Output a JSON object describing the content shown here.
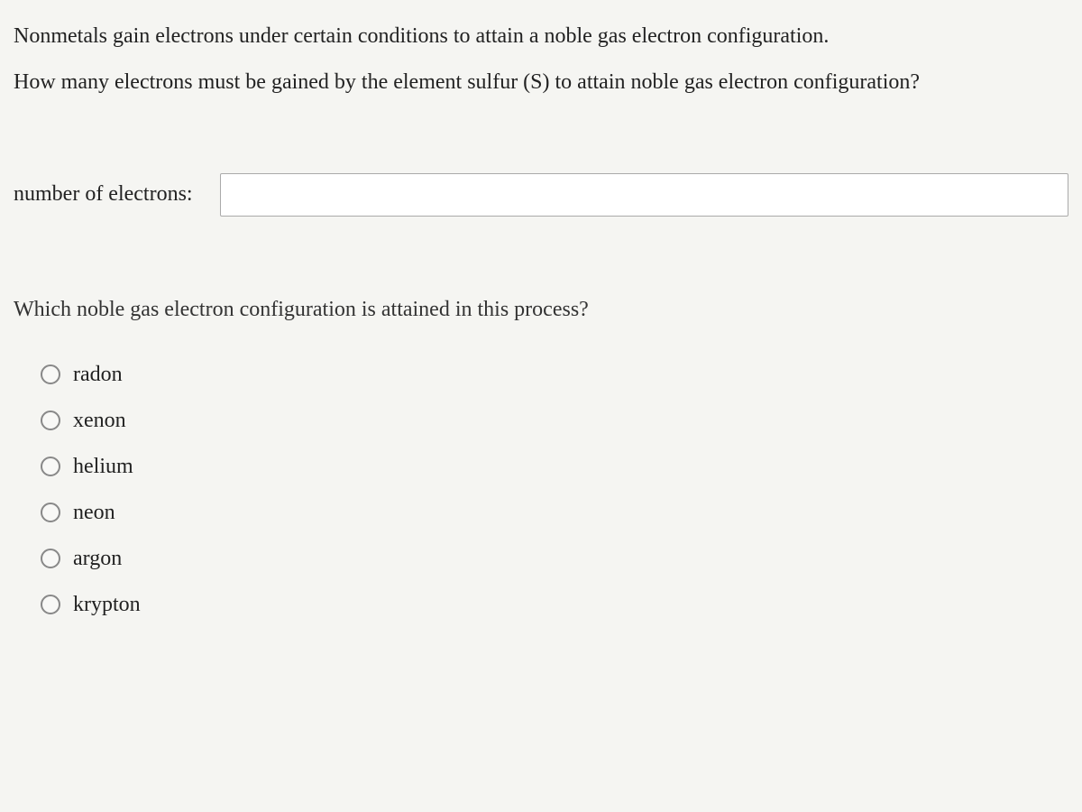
{
  "question": {
    "line1": "Nonmetals gain electrons under certain conditions to attain a noble gas electron configuration.",
    "line2": "How many electrons must be gained by the element sulfur (S) to attain noble gas electron configuration?"
  },
  "input": {
    "label": "number of electrons:",
    "value": ""
  },
  "subQuestion": "Which noble gas electron configuration is attained in this process?",
  "options": [
    {
      "label": "radon"
    },
    {
      "label": "xenon"
    },
    {
      "label": "helium"
    },
    {
      "label": "neon"
    },
    {
      "label": "argon"
    },
    {
      "label": "krypton"
    }
  ],
  "colors": {
    "background": "#f5f5f2",
    "text": "#1a1a1a",
    "inputBorder": "#aaaaaa",
    "radioBorder": "#888888"
  }
}
